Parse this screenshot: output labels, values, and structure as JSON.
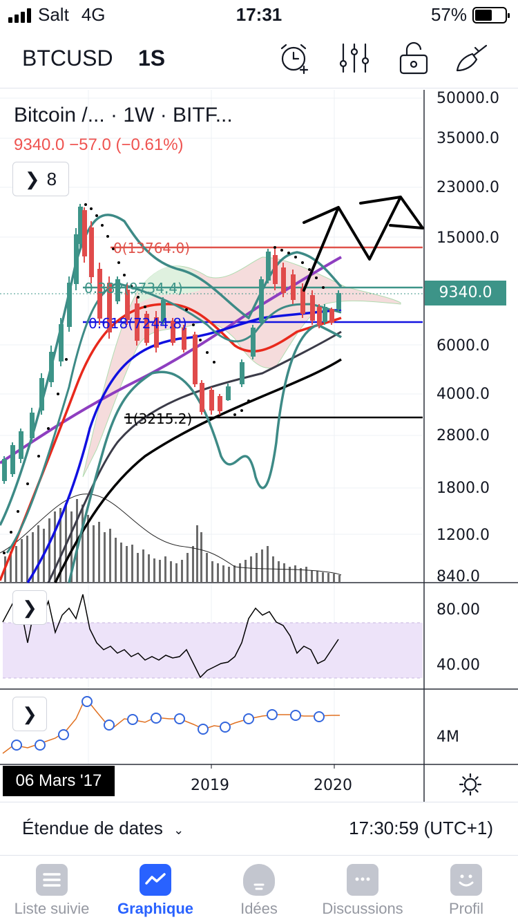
{
  "status_bar": {
    "carrier": "Salt",
    "network": "4G",
    "time": "17:31",
    "battery": "57%",
    "battery_level": 0.57
  },
  "toolbar": {
    "symbol": "BTCUSD",
    "interval": "1S",
    "icons": [
      "alarm-add-icon",
      "indicators-icon",
      "lock-icon",
      "drawing-tool-icon"
    ]
  },
  "chart": {
    "legend": {
      "title": "Bitcoin /...  ·  1W  ·  BITF...",
      "values": "9340.0  −57.0 (−0.61%)",
      "indicators_button": "8"
    },
    "price_axis": [
      "50000.0",
      "35000.0",
      "23000.0",
      "15000.0",
      "6000.0",
      "4000.0",
      "2800.0",
      "1800.0",
      "1200.0",
      "840.0"
    ],
    "current_price": "9340.0",
    "fib_levels": {
      "top": "0(13764.0)",
      "mid": "0.382(9734.4)",
      "golden": "0.618(7244.8)",
      "bottom": "1(3215.2)"
    },
    "rsi_axis": [
      "80.00",
      "40.00"
    ],
    "volume_axis": [
      "4M"
    ],
    "time_axis": [
      "2019",
      "2020"
    ],
    "crosshair_date": "06 Mars '17",
    "colors": {
      "up": "#3d9488",
      "down": "#e04b4b",
      "bollinger": "#3d8a86",
      "ma_purple": "#8e3ec0",
      "ma_red": "#e8291c",
      "ma_blue": "#1010e0",
      "ma_gray": "#3b3b48",
      "ma_black": "#000000",
      "rsi_band": "#ede3f9"
    }
  },
  "range_bar": {
    "label": "Étendue de dates",
    "clock": "17:30:59 (UTC+1)"
  },
  "tabs": [
    {
      "label": "Liste suivie",
      "icon": "watchlist-icon",
      "active": false
    },
    {
      "label": "Graphique",
      "icon": "chart-icon",
      "active": true
    },
    {
      "label": "Idées",
      "icon": "ideas-lightbulb-icon",
      "active": false
    },
    {
      "label": "Discussions",
      "icon": "chat-bubble-icon",
      "active": false
    },
    {
      "label": "Profil",
      "icon": "profile-smile-icon",
      "active": false
    }
  ]
}
